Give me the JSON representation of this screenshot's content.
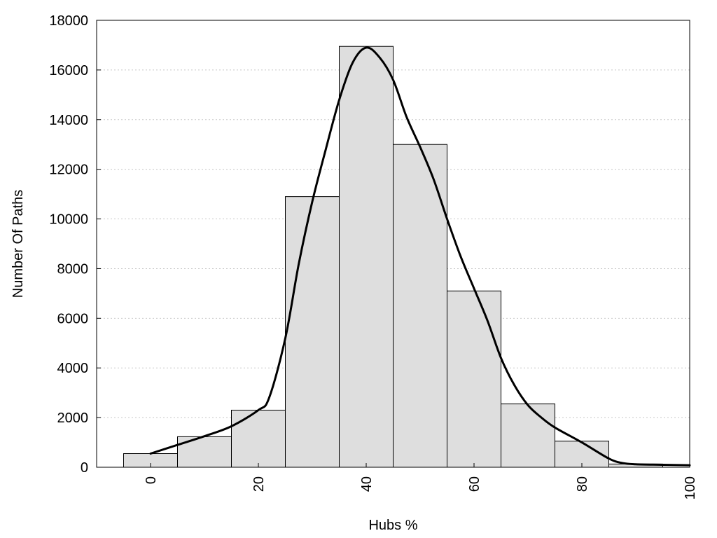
{
  "chart_data": {
    "type": "bar",
    "title": "",
    "xlabel": "Hubs %",
    "ylabel": "Number Of Paths",
    "xlim": [
      -10,
      100
    ],
    "ylim": [
      0,
      18000
    ],
    "grid": true,
    "bin_width": 10,
    "bars": [
      {
        "x": 0,
        "value": 550
      },
      {
        "x": 10,
        "value": 1230
      },
      {
        "x": 20,
        "value": 2300
      },
      {
        "x": 30,
        "value": 10900
      },
      {
        "x": 40,
        "value": 16950
      },
      {
        "x": 50,
        "value": 13000
      },
      {
        "x": 60,
        "value": 7100
      },
      {
        "x": 70,
        "value": 2550
      },
      {
        "x": 80,
        "value": 1050
      },
      {
        "x": 90,
        "value": 130
      }
    ],
    "curve": [
      [
        0,
        550
      ],
      [
        5,
        900
      ],
      [
        10,
        1250
      ],
      [
        15,
        1650
      ],
      [
        20,
        2300
      ],
      [
        22,
        2800
      ],
      [
        25,
        5200
      ],
      [
        27.5,
        8200
      ],
      [
        30,
        10700
      ],
      [
        32.5,
        12800
      ],
      [
        35,
        14800
      ],
      [
        37.5,
        16300
      ],
      [
        40,
        16900
      ],
      [
        42.5,
        16500
      ],
      [
        45,
        15600
      ],
      [
        47.5,
        14100
      ],
      [
        50,
        12900
      ],
      [
        52.5,
        11600
      ],
      [
        55,
        10000
      ],
      [
        57.5,
        8500
      ],
      [
        60,
        7200
      ],
      [
        62.5,
        5900
      ],
      [
        65,
        4400
      ],
      [
        67.5,
        3300
      ],
      [
        70,
        2500
      ],
      [
        72.5,
        2000
      ],
      [
        75,
        1600
      ],
      [
        80,
        1000
      ],
      [
        85,
        350
      ],
      [
        87.5,
        170
      ],
      [
        90,
        120
      ],
      [
        95,
        100
      ],
      [
        100,
        80
      ]
    ],
    "x_ticks": [
      {
        "value": 0,
        "label": "0"
      },
      {
        "value": 20,
        "label": "20"
      },
      {
        "value": 40,
        "label": "40"
      },
      {
        "value": 60,
        "label": "60"
      },
      {
        "value": 80,
        "label": "80"
      },
      {
        "value": 100,
        "label": "100"
      }
    ],
    "y_ticks": [
      {
        "value": 0,
        "label": "0"
      },
      {
        "value": 2000,
        "label": "2000"
      },
      {
        "value": 4000,
        "label": "4000"
      },
      {
        "value": 6000,
        "label": "6000"
      },
      {
        "value": 8000,
        "label": "8000"
      },
      {
        "value": 10000,
        "label": "10000"
      },
      {
        "value": 12000,
        "label": "12000"
      },
      {
        "value": 14000,
        "label": "14000"
      },
      {
        "value": 16000,
        "label": "16000"
      },
      {
        "value": 18000,
        "label": "18000"
      }
    ],
    "colors": {
      "bar_fill": "#dedede",
      "bar_stroke": "#000000",
      "curve": "#000000",
      "grid": "#c8c8c8"
    }
  }
}
